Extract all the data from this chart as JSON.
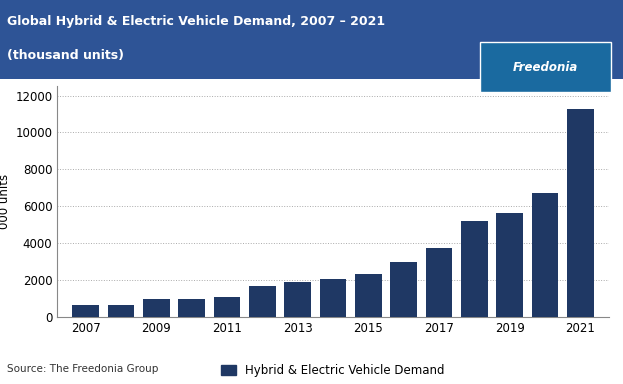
{
  "title_line1": "Global Hybrid & Electric Vehicle Demand, 2007 – 2021",
  "title_line2": "(thousand units)",
  "header_bg_color": "#2e5496",
  "header_text_color": "#ffffff",
  "bar_color": "#1f3864",
  "ylabel": "000 units",
  "legend_label": "Hybrid & Electric Vehicle Demand",
  "source_text": "Source: The Freedonia Group",
  "freedonia_logo_bg": "#1a6aa0",
  "freedonia_logo_text": "Freedonia",
  "years": [
    2007,
    2008,
    2009,
    2010,
    2011,
    2012,
    2013,
    2014,
    2015,
    2016,
    2017,
    2018,
    2019,
    2020,
    2021
  ],
  "values": [
    620,
    620,
    950,
    980,
    1100,
    1680,
    1900,
    2050,
    2300,
    2950,
    3750,
    5200,
    5650,
    6700,
    11300
  ],
  "xtick_labels": [
    "2007",
    "2009",
    "2011",
    "2013",
    "2015",
    "2017",
    "2019",
    "2021"
  ],
  "xtick_positions": [
    2007,
    2009,
    2011,
    2013,
    2015,
    2017,
    2019,
    2021
  ],
  "ylim": [
    0,
    12500
  ],
  "yticks": [
    0,
    2000,
    4000,
    6000,
    8000,
    10000,
    12000
  ],
  "grid_color": "#aaaaaa",
  "grid_linestyle": ":",
  "plot_bg_color": "#ffffff",
  "outer_bg_color": "#ffffff",
  "figsize": [
    6.23,
    3.84
  ],
  "dpi": 100
}
